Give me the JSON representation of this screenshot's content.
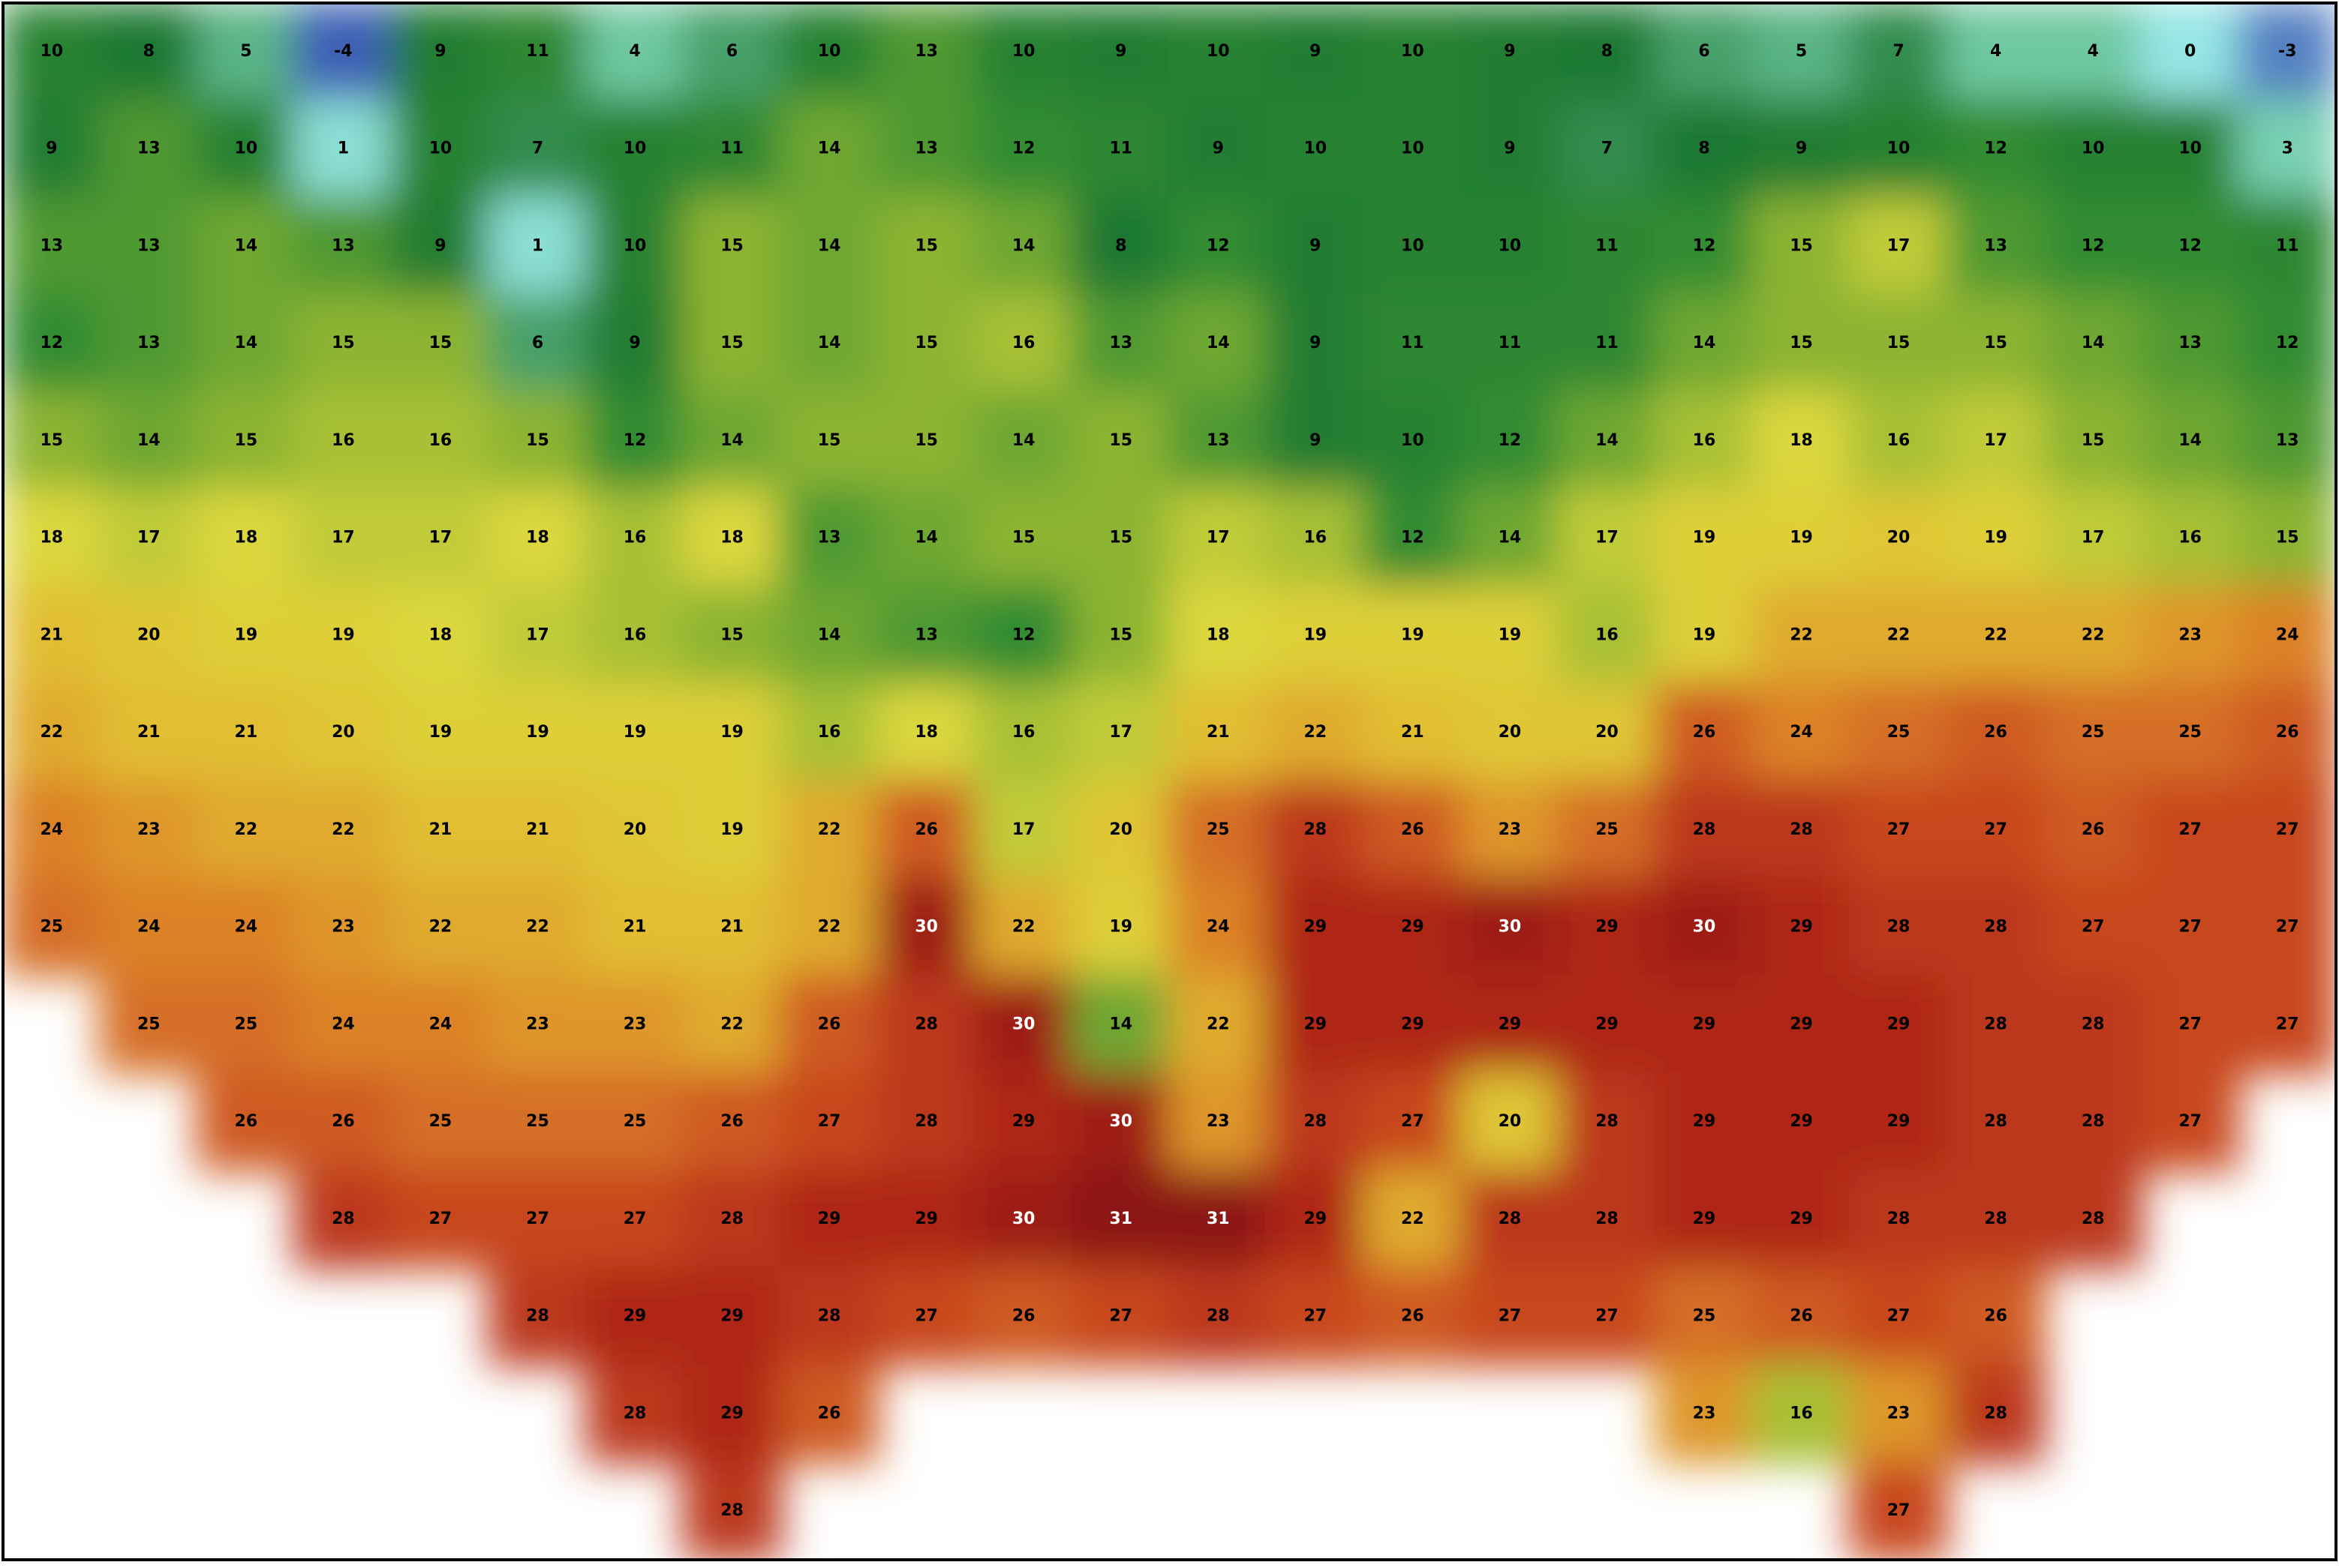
{
  "map": {
    "rows": [
      [
        10,
        8,
        5,
        -4,
        9,
        11,
        4,
        6,
        10,
        13,
        10,
        9,
        10,
        9,
        10,
        9,
        8,
        6,
        5,
        7,
        4,
        4,
        0,
        -3
      ],
      [
        9,
        13,
        10,
        1,
        10,
        7,
        10,
        11,
        14,
        13,
        12,
        11,
        9,
        10,
        10,
        9,
        7,
        8,
        9,
        10,
        12,
        10,
        10,
        3
      ],
      [
        13,
        13,
        14,
        13,
        9,
        1,
        10,
        15,
        14,
        15,
        14,
        8,
        12,
        9,
        10,
        10,
        11,
        12,
        15,
        17,
        13,
        12,
        12,
        11
      ],
      [
        12,
        13,
        14,
        15,
        15,
        6,
        9,
        15,
        14,
        15,
        16,
        13,
        14,
        9,
        11,
        11,
        11,
        14,
        15,
        15,
        15,
        14,
        13,
        12
      ],
      [
        15,
        14,
        15,
        16,
        16,
        15,
        12,
        14,
        15,
        15,
        14,
        15,
        13,
        9,
        10,
        12,
        14,
        16,
        18,
        16,
        17,
        15,
        14,
        13
      ],
      [
        18,
        17,
        18,
        17,
        17,
        18,
        16,
        18,
        13,
        14,
        15,
        15,
        17,
        16,
        12,
        14,
        17,
        19,
        19,
        20,
        19,
        17,
        16,
        15
      ],
      [
        21,
        20,
        19,
        19,
        18,
        17,
        16,
        15,
        14,
        13,
        12,
        15,
        18,
        19,
        19,
        19,
        16,
        19,
        22,
        22,
        22,
        22,
        23,
        24
      ],
      [
        22,
        21,
        21,
        20,
        19,
        19,
        19,
        19,
        16,
        18,
        16,
        17,
        21,
        22,
        21,
        20,
        20,
        26,
        24,
        25,
        26,
        25,
        25,
        26
      ],
      [
        24,
        23,
        22,
        22,
        21,
        21,
        20,
        19,
        22,
        26,
        17,
        20,
        25,
        28,
        26,
        23,
        25,
        28,
        28,
        27,
        27,
        26,
        27,
        27
      ],
      [
        25,
        24,
        24,
        23,
        22,
        22,
        21,
        21,
        22,
        30,
        22,
        19,
        24,
        29,
        29,
        30,
        29,
        30,
        29,
        28,
        28,
        27,
        27,
        27
      ],
      [
        null,
        25,
        25,
        24,
        24,
        23,
        23,
        22,
        26,
        28,
        30,
        14,
        22,
        29,
        29,
        29,
        29,
        29,
        29,
        29,
        28,
        28,
        27,
        27
      ],
      [
        null,
        null,
        26,
        26,
        25,
        25,
        25,
        26,
        27,
        28,
        29,
        30,
        23,
        28,
        27,
        20,
        28,
        29,
        29,
        29,
        28,
        28,
        27,
        null
      ],
      [
        null,
        null,
        null,
        28,
        27,
        27,
        27,
        28,
        29,
        29,
        30,
        31,
        31,
        29,
        22,
        28,
        28,
        29,
        29,
        28,
        28,
        28,
        null,
        null
      ],
      [
        null,
        null,
        null,
        null,
        null,
        28,
        29,
        29,
        28,
        27,
        26,
        27,
        28,
        27,
        26,
        27,
        27,
        25,
        26,
        27,
        26,
        null,
        null,
        null
      ],
      [
        null,
        null,
        null,
        null,
        null,
        null,
        28,
        29,
        26,
        null,
        null,
        null,
        null,
        null,
        null,
        null,
        null,
        23,
        16,
        23,
        28,
        null,
        null,
        null
      ],
      [
        null,
        null,
        null,
        null,
        null,
        null,
        null,
        28,
        null,
        null,
        null,
        null,
        null,
        null,
        null,
        null,
        null,
        null,
        null,
        27,
        null,
        null,
        null,
        null
      ]
    ]
  }
}
